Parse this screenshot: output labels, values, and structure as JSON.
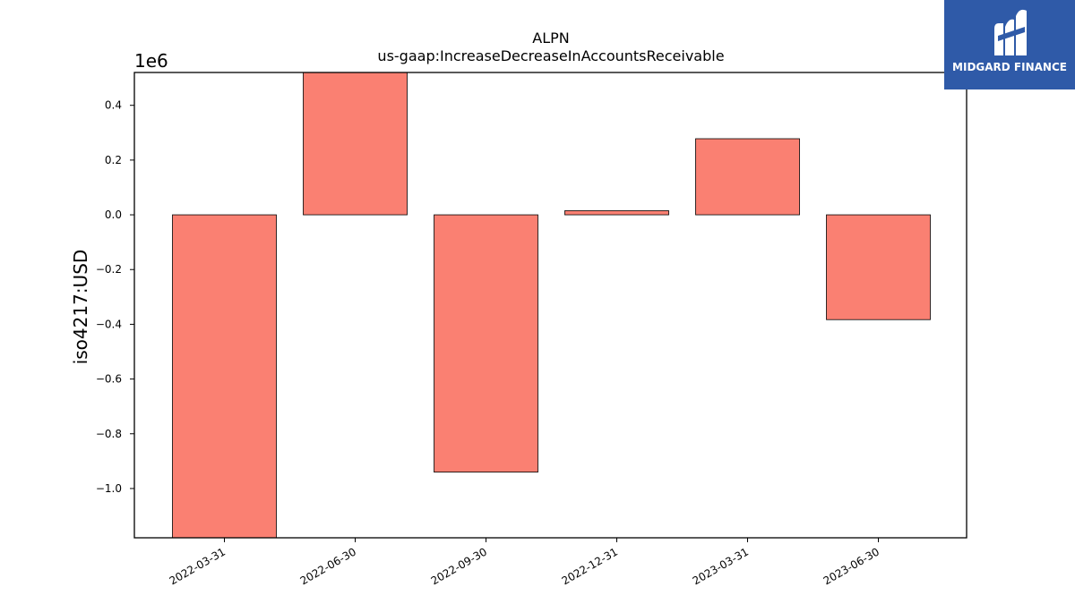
{
  "chart_data": {
    "type": "bar",
    "title": "ALPN",
    "subtitle": "us-gaap:IncreaseDecreaseInAccountsReceivable",
    "xlabel": "",
    "ylabel": "iso4217:USD",
    "offset_label": "1e6",
    "categories": [
      "2022-03-31",
      "2022-06-30",
      "2022-09-30",
      "2022-12-31",
      "2023-03-31",
      "2023-06-30"
    ],
    "values": [
      -1180000,
      520000,
      -940000,
      15000,
      278000,
      -383000
    ],
    "ylim": [
      -1.18,
      0.52
    ],
    "yticks": [
      0.4,
      0.2,
      0.0,
      -0.2,
      -0.4,
      -0.6,
      -0.8,
      -1.0
    ],
    "ytick_labels": [
      "0.4",
      "0.2",
      "0.0",
      "−0.2",
      "−0.4",
      "−0.6",
      "−0.8",
      "−1.0"
    ],
    "bar_color": "#fa8072",
    "grid": false,
    "legend": "none"
  },
  "logo": {
    "text": "MIDGARD FINANCE",
    "background": "#2f5aa8",
    "icon": "midgard-m-logo-icon"
  }
}
